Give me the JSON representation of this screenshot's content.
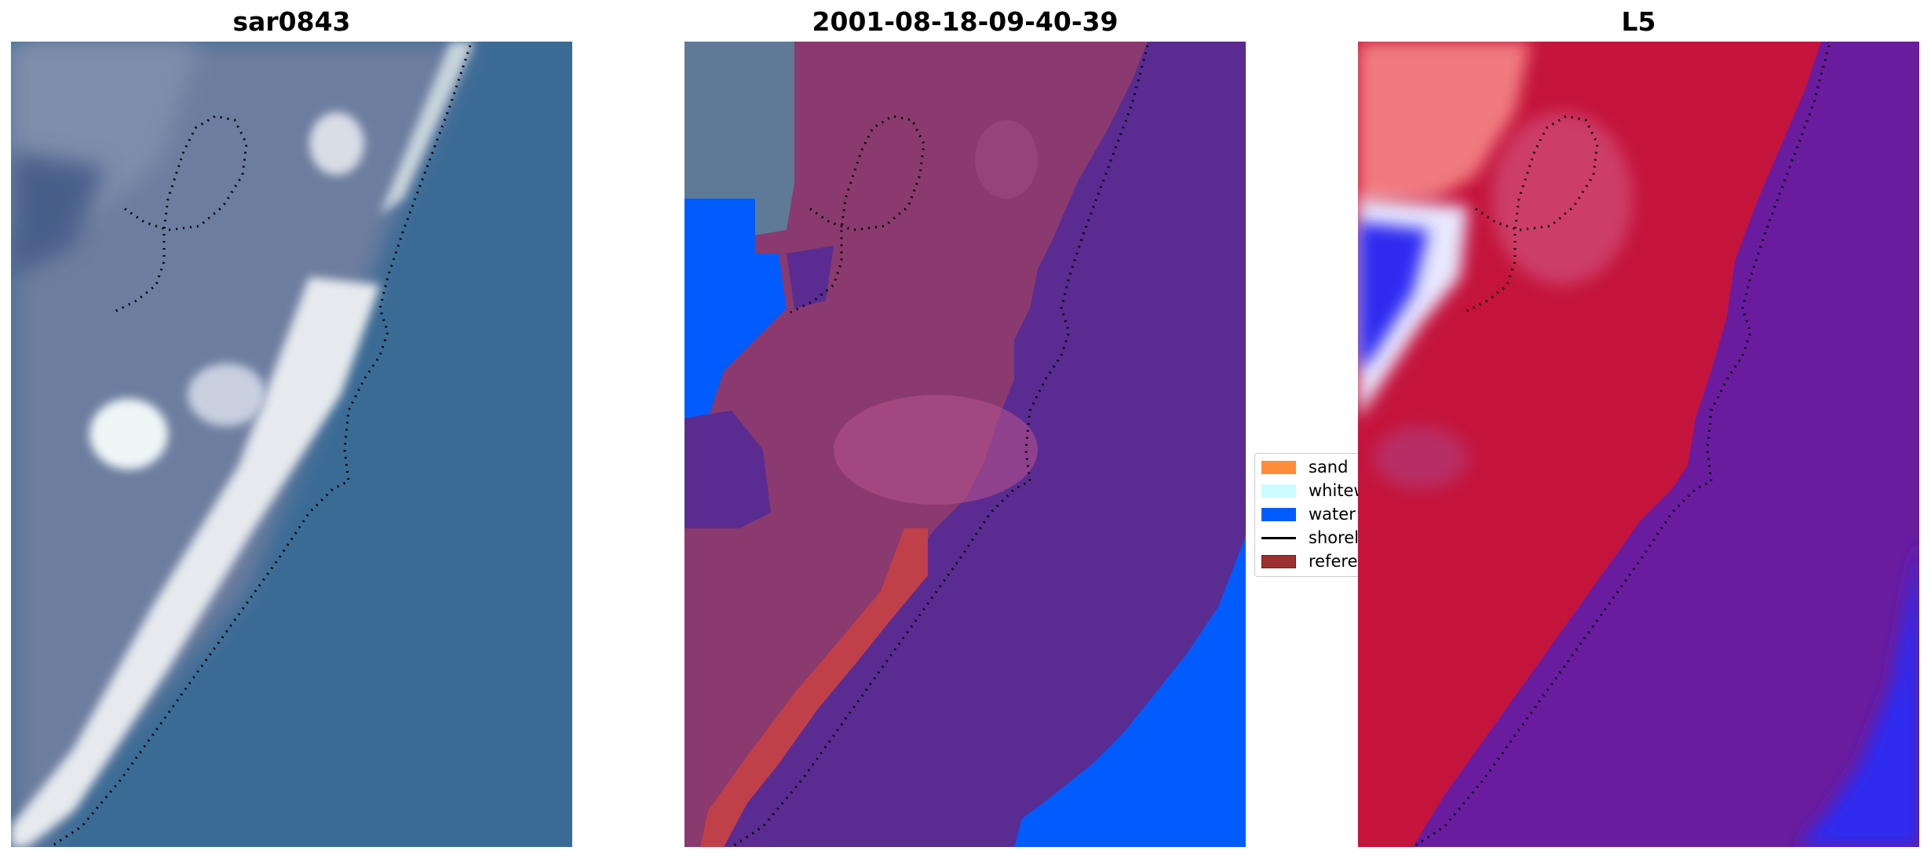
{
  "panels": [
    {
      "title": "sar0843",
      "kind": "rgb-image"
    },
    {
      "title": "2001-08-18-09-40-39",
      "kind": "classified-overlay"
    },
    {
      "title": "L5",
      "kind": "index-map"
    }
  ],
  "legend": {
    "items": [
      {
        "label": "sand",
        "color": "#ff8c3a",
        "shape": "patch"
      },
      {
        "label": "whitewater",
        "color": "#ccfcff",
        "shape": "patch"
      },
      {
        "label": "water",
        "color": "#005cff",
        "shape": "patch"
      },
      {
        "label": "shoreline",
        "color": "#000000",
        "shape": "line"
      },
      {
        "label": "reference",
        "color": "#9c2f2f",
        "shape": "patch"
      }
    ]
  },
  "colors": {
    "ocean_rgb": "#3a6b95",
    "land_rgb": "#6f7f9f",
    "surf_rgb": "#e8ecef",
    "class_land": "#8a3a6e",
    "class_ocean": "#5a2c92",
    "class_water": "#005cff",
    "class_reference": "#c0404a",
    "l5_land": "#c4143c",
    "l5_ocean": "#6a1c9e",
    "l5_blue": "#2e2cf0",
    "l5_pink": "#f07a80"
  }
}
